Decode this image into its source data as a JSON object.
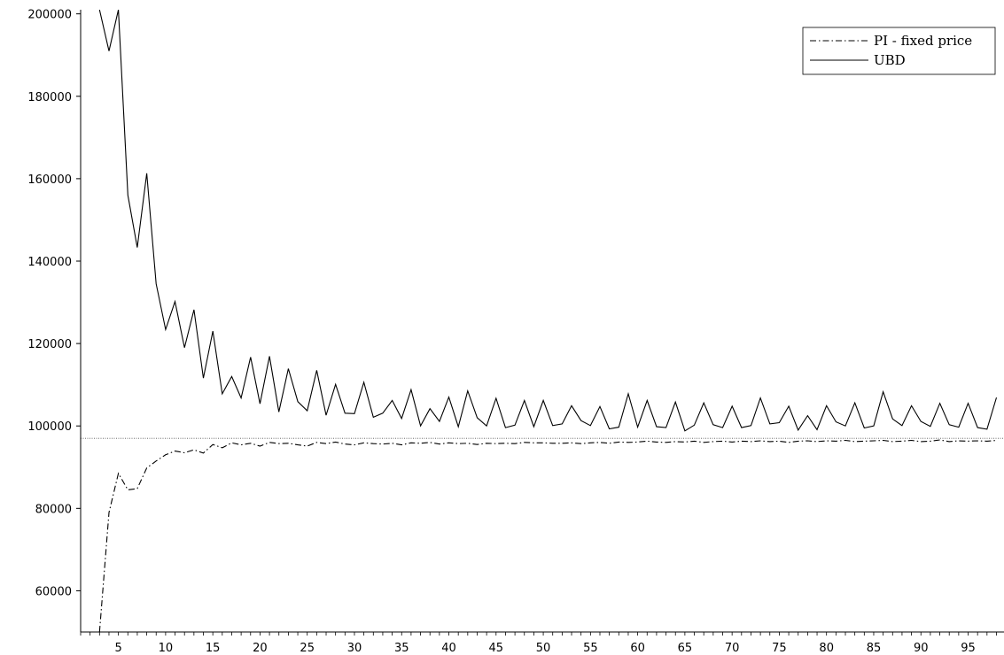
{
  "chart_data": {
    "type": "line",
    "title": "",
    "xlabel": "",
    "ylabel": "",
    "xlim": [
      1,
      98.8
    ],
    "ylim": [
      50000,
      201000
    ],
    "xticks": [
      5,
      10,
      15,
      20,
      25,
      30,
      35,
      40,
      45,
      50,
      55,
      60,
      65,
      70,
      75,
      80,
      85,
      90,
      95
    ],
    "yticks": [
      60000,
      80000,
      100000,
      120000,
      140000,
      160000,
      180000,
      200000
    ],
    "reference_line": {
      "y": 97000,
      "style": "dotted"
    },
    "legend": {
      "position": "top-right",
      "entries": [
        "PI - fixed price",
        "UBD"
      ]
    },
    "series": [
      {
        "name": "PI - fixed price",
        "style": "dashdot",
        "color": "#000000",
        "x": [
          3,
          4,
          5,
          6,
          7,
          8,
          9,
          10,
          11,
          12,
          13,
          14,
          15,
          16,
          17,
          18,
          19,
          20,
          21,
          22,
          23,
          24,
          25,
          26,
          27,
          28,
          29,
          30,
          31,
          32,
          33,
          34,
          35,
          36,
          37,
          38,
          39,
          40,
          41,
          42,
          43,
          44,
          45,
          46,
          47,
          48,
          49,
          50,
          51,
          52,
          53,
          54,
          55,
          56,
          57,
          58,
          59,
          60,
          61,
          62,
          63,
          64,
          65,
          66,
          67,
          68,
          69,
          70,
          71,
          72,
          73,
          74,
          75,
          76,
          77,
          78,
          79,
          80,
          81,
          82,
          83,
          84,
          85,
          86,
          87,
          88,
          89,
          90,
          91,
          92,
          93,
          94,
          95,
          96,
          97,
          98
        ],
        "values": [
          50000,
          79000,
          88500,
          84500,
          84800,
          89800,
          91500,
          93000,
          93900,
          93500,
          94200,
          93400,
          95500,
          94700,
          95900,
          95400,
          95800,
          95100,
          96000,
          95700,
          95800,
          95400,
          95100,
          96000,
          95700,
          96100,
          95600,
          95400,
          95900,
          95700,
          95600,
          95800,
          95400,
          95900,
          95800,
          96000,
          95600,
          95900,
          95700,
          95800,
          95500,
          95800,
          95700,
          95800,
          95700,
          96000,
          95900,
          95900,
          95800,
          95800,
          95900,
          95700,
          95900,
          96000,
          95800,
          96100,
          96000,
          96100,
          96300,
          96100,
          96000,
          96200,
          96100,
          96300,
          96000,
          96200,
          96300,
          96100,
          96300,
          96200,
          96400,
          96200,
          96300,
          96000,
          96300,
          96400,
          96200,
          96400,
          96300,
          96500,
          96200,
          96300,
          96400,
          96500,
          96200,
          96300,
          96500,
          96200,
          96300,
          96600,
          96200,
          96400,
          96300,
          96400,
          96300,
          96500
        ]
      },
      {
        "name": "UBD",
        "style": "solid",
        "color": "#000000",
        "x": [
          3,
          4,
          5,
          6,
          7,
          8,
          9,
          10,
          11,
          12,
          13,
          14,
          15,
          16,
          17,
          18,
          19,
          20,
          21,
          22,
          23,
          24,
          25,
          26,
          27,
          28,
          29,
          30,
          31,
          32,
          33,
          34,
          35,
          36,
          37,
          38,
          39,
          40,
          41,
          42,
          43,
          44,
          45,
          46,
          47,
          48,
          49,
          50,
          51,
          52,
          53,
          54,
          55,
          56,
          57,
          58,
          59,
          60,
          61,
          62,
          63,
          64,
          65,
          66,
          67,
          68,
          69,
          70,
          71,
          72,
          73,
          74,
          75,
          76,
          77,
          78,
          79,
          80,
          81,
          82,
          83,
          84,
          85,
          86,
          87,
          88,
          89,
          90,
          91,
          92,
          93,
          94,
          95,
          96,
          97,
          98
        ],
        "values": [
          201000,
          191000,
          201000,
          156000,
          143300,
          161300,
          134500,
          123400,
          130200,
          119000,
          128200,
          111600,
          123000,
          107800,
          112000,
          106800,
          116700,
          105400,
          116900,
          103400,
          113900,
          105900,
          103700,
          113500,
          102600,
          110100,
          103100,
          103000,
          110600,
          102100,
          103100,
          106200,
          101800,
          108800,
          100000,
          104200,
          101100,
          107000,
          99800,
          108500,
          102000,
          100000,
          106700,
          99600,
          100200,
          106200,
          99800,
          106200,
          100100,
          100500,
          104900,
          101300,
          100100,
          104700,
          99300,
          99700,
          107800,
          99700,
          106200,
          99800,
          99600,
          105800,
          98800,
          100200,
          105600,
          100300,
          99600,
          104800,
          99600,
          100100,
          106800,
          100500,
          100800,
          104800,
          99000,
          102500,
          99100,
          104900,
          101000,
          100000,
          105600,
          99500,
          100000,
          108300,
          101700,
          100100,
          104900,
          101100,
          99900,
          105500,
          100300,
          99700,
          105500,
          99600,
          99200,
          106900
        ]
      }
    ]
  }
}
